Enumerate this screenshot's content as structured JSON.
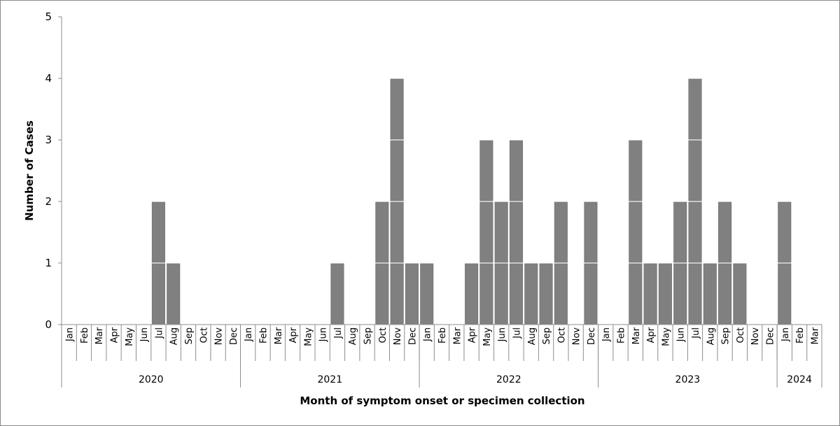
{
  "chart_data": {
    "type": "bar",
    "stacked_unit_blocks": true,
    "ylabel": "Number of Cases",
    "xlabel": "Month of symptom onset or specimen collection",
    "ylim": [
      0,
      5
    ],
    "yticks": [
      0,
      1,
      2,
      3,
      4,
      5
    ],
    "grid": false,
    "bar_color": "#808080",
    "years": [
      {
        "label": "2020",
        "months": [
          "Jan",
          "Feb",
          "Mar",
          "Apr",
          "May",
          "Jun",
          "Jul",
          "Aug",
          "Sep",
          "Oct",
          "Nov",
          "Dec"
        ],
        "values": [
          0,
          0,
          0,
          0,
          0,
          0,
          2,
          1,
          0,
          0,
          0,
          0
        ]
      },
      {
        "label": "2021",
        "months": [
          "Jan",
          "Feb",
          "Mar",
          "Apr",
          "May",
          "Jun",
          "Jul",
          "Aug",
          "Sep",
          "Oct",
          "Nov",
          "Dec"
        ],
        "values": [
          0,
          0,
          0,
          0,
          0,
          0,
          1,
          0,
          0,
          2,
          4,
          1
        ]
      },
      {
        "label": "2022",
        "months": [
          "Jan",
          "Feb",
          "Mar",
          "Apr",
          "May",
          "Jun",
          "Jul",
          "Aug",
          "Sep",
          "Oct",
          "Nov",
          "Dec"
        ],
        "values": [
          1,
          0,
          0,
          1,
          3,
          2,
          3,
          1,
          1,
          2,
          0,
          2
        ]
      },
      {
        "label": "2023",
        "months": [
          "Jan",
          "Feb",
          "Mar",
          "Apr",
          "May",
          "Jun",
          "Jul",
          "Aug",
          "Sep",
          "Oct",
          "Nov",
          "Dec"
        ],
        "values": [
          0,
          0,
          3,
          1,
          1,
          2,
          4,
          1,
          2,
          1,
          0,
          0
        ]
      },
      {
        "label": "2024",
        "months": [
          "Jan",
          "Feb",
          "Mar"
        ],
        "values": [
          2,
          0,
          0
        ]
      }
    ]
  }
}
